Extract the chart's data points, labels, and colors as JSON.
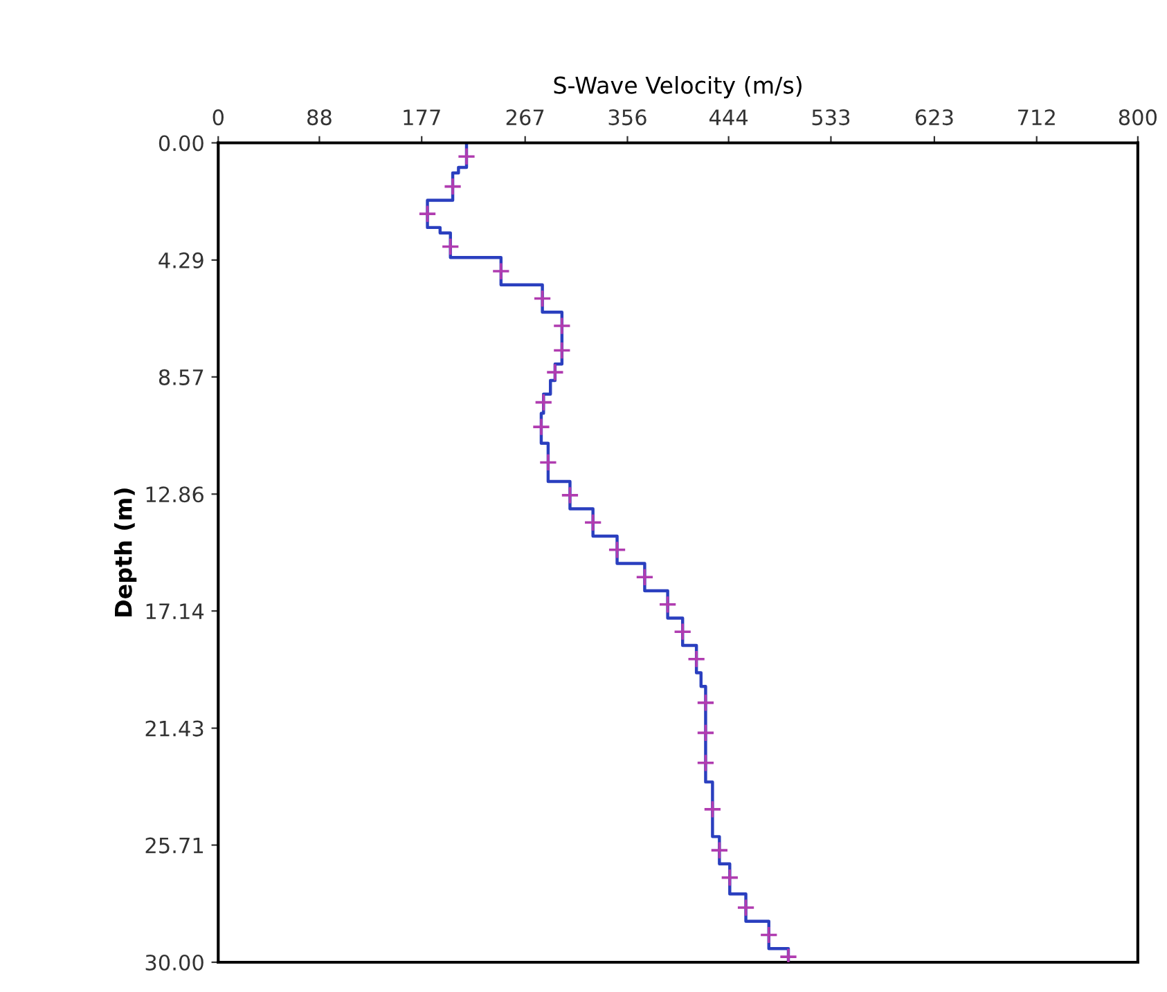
{
  "chart_data": {
    "type": "line",
    "xlabel": "S-Wave Velocity (m/s)",
    "ylabel": "Depth (m)",
    "xlim": [
      0,
      800
    ],
    "ylim": [
      30,
      0
    ],
    "xticks": [
      0,
      88,
      177,
      267,
      356,
      444,
      533,
      623,
      712,
      800
    ],
    "yticks": [
      {
        "value": 0,
        "label": "0.00"
      },
      {
        "value": 4.29,
        "label": "4.29"
      },
      {
        "value": 8.57,
        "label": "8.57"
      },
      {
        "value": 12.86,
        "label": "12.86"
      },
      {
        "value": 17.14,
        "label": "17.14"
      },
      {
        "value": 21.43,
        "label": "21.43"
      },
      {
        "value": 25.71,
        "label": "25.71"
      },
      {
        "value": 30,
        "label": "30.00"
      }
    ],
    "grid": false,
    "legend": false,
    "series": [
      {
        "color": "#2a3fbf",
        "line_style": "solid",
        "marker": "none",
        "x": [
          216,
          216,
          209,
          209,
          204,
          204,
          182,
          182,
          193,
          193,
          202,
          202,
          246,
          246,
          282,
          282,
          299,
          299,
          293,
          293,
          289,
          289,
          283,
          283,
          281,
          281,
          287,
          287,
          306,
          306,
          326,
          326,
          347,
          347,
          371,
          371,
          391,
          391,
          404,
          404,
          416,
          416,
          420,
          420,
          424,
          424,
          430,
          430,
          436,
          436,
          445,
          445,
          459,
          459,
          479,
          479,
          496,
          496
        ],
        "values": [
          0,
          0.9,
          0.9,
          1.1,
          1.1,
          2.1,
          2.1,
          3.1,
          3.1,
          3.3,
          3.3,
          4.2,
          4.2,
          5.2,
          5.2,
          6.2,
          6.2,
          8.1,
          8.1,
          8.7,
          8.7,
          9.2,
          9.2,
          9.9,
          9.9,
          11.0,
          11.0,
          12.4,
          12.4,
          13.4,
          13.4,
          14.4,
          14.4,
          15.4,
          15.4,
          16.4,
          16.4,
          17.4,
          17.4,
          18.4,
          18.4,
          19.4,
          19.4,
          19.9,
          19.9,
          23.4,
          23.4,
          25.4,
          25.4,
          26.4,
          26.4,
          27.5,
          27.5,
          28.5,
          28.5,
          29.5,
          29.5,
          30
        ]
      },
      {
        "type": "scatter",
        "color": "#b03cb0",
        "marker": "cross",
        "x": [
          216,
          204,
          182,
          202,
          246,
          282,
          299,
          299,
          293,
          283,
          281,
          287,
          306,
          326,
          347,
          371,
          391,
          404,
          416,
          424,
          424,
          424,
          430,
          436,
          445,
          459,
          479,
          496
        ],
        "values": [
          0.5,
          1.6,
          2.6,
          3.8,
          4.7,
          5.7,
          6.7,
          7.6,
          8.4,
          9.5,
          10.4,
          11.7,
          12.9,
          13.9,
          14.9,
          15.9,
          16.9,
          17.9,
          18.9,
          20.5,
          21.6,
          22.7,
          24.4,
          25.9,
          26.9,
          28.0,
          29.0,
          29.8
        ]
      }
    ]
  }
}
